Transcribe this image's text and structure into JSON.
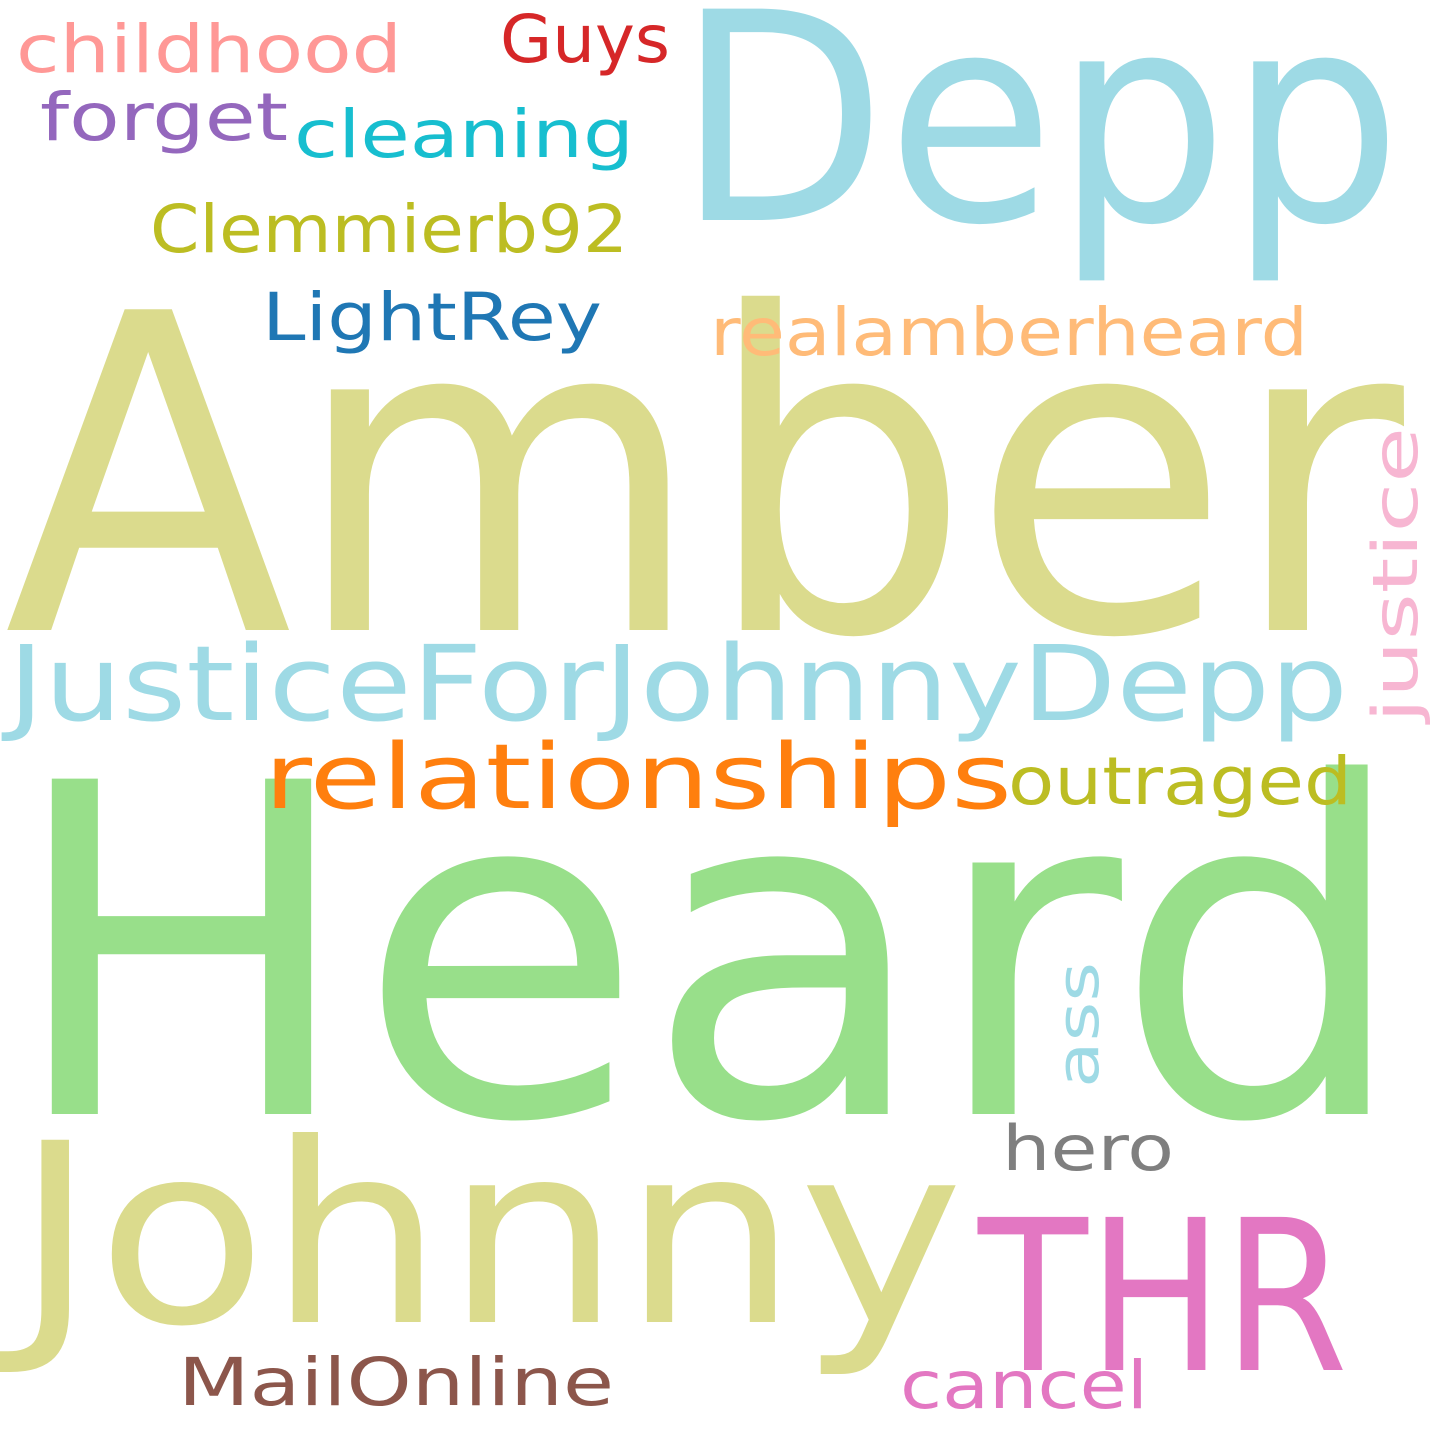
{
  "words": [
    {
      "text": "Heard",
      "color": "#98df8a"
    },
    {
      "text": "Amber",
      "color": "#dbdb8d"
    },
    {
      "text": "Depp",
      "color": "#9edae5"
    },
    {
      "text": "Johnny",
      "color": "#dbdb8d"
    },
    {
      "text": "THR",
      "color": "#e377c2"
    },
    {
      "text": "JusticeForJohnnyDepp",
      "color": "#9edae5"
    },
    {
      "text": "relationships",
      "color": "#ff7f0e"
    },
    {
      "text": "realamberheard",
      "color": "#ffbb78"
    },
    {
      "text": "Clemmierb92",
      "color": "#bcbd22"
    },
    {
      "text": "childhood",
      "color": "#ff9896"
    },
    {
      "text": "cleaning",
      "color": "#17becf"
    },
    {
      "text": "outraged",
      "color": "#bcbd22"
    },
    {
      "text": "MailOnline",
      "color": "#8c564b"
    },
    {
      "text": "LightRey",
      "color": "#1f77b4"
    },
    {
      "text": "forget",
      "color": "#9467bd"
    },
    {
      "text": "Guys",
      "color": "#d62728"
    },
    {
      "text": "justice",
      "color": "#f7b6d2"
    },
    {
      "text": "cancel",
      "color": "#e377c2"
    },
    {
      "text": "hero",
      "color": "#7f7f7f"
    },
    {
      "text": "ass",
      "color": "#9edae5"
    }
  ]
}
